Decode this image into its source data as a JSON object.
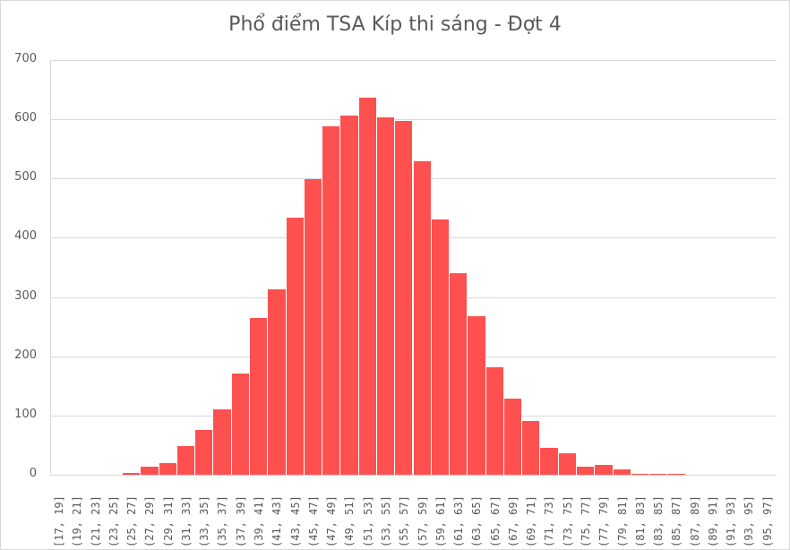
{
  "chart_data": {
    "type": "bar",
    "title": "Phổ điểm TSA Kíp thi sáng - Đợt 4",
    "xlabel": "",
    "ylabel": "",
    "ylim": [
      0,
      700
    ],
    "yticks": [
      0,
      100,
      200,
      300,
      400,
      500,
      600,
      700
    ],
    "grid": true,
    "legend": "none",
    "bar_color": "#ff5050",
    "categories": [
      "[17, 19]",
      "(19, 21]",
      "(21, 23]",
      "(23, 25]",
      "(25, 27]",
      "(27, 29]",
      "(29, 31]",
      "(31, 33]",
      "(33, 35]",
      "(35, 37]",
      "(37, 39]",
      "(39, 41]",
      "(41, 43]",
      "(43, 45]",
      "(45, 47]",
      "(47, 49]",
      "(49, 51]",
      "(51, 53]",
      "(53, 55]",
      "(55, 57]",
      "(57, 59]",
      "(59, 61]",
      "(61, 63]",
      "(63, 65]",
      "(65, 67]",
      "(67, 69]",
      "(69, 71]",
      "(71, 73]",
      "(73, 75]",
      "(75, 77]",
      "(77, 79]",
      "(79, 81]",
      "(81, 83]",
      "(83, 85]",
      "(85, 87]",
      "(87, 89]",
      "(89, 91]",
      "(91, 93]",
      "(93, 95]",
      "(95, 97]"
    ],
    "values": [
      0,
      0,
      0,
      0,
      3,
      13,
      20,
      48,
      76,
      110,
      171,
      265,
      313,
      434,
      499,
      588,
      606,
      636,
      603,
      597,
      529,
      431,
      340,
      268,
      181,
      129,
      91,
      46,
      37,
      13,
      17,
      9,
      2,
      2,
      2,
      0,
      0,
      0,
      0,
      0
    ]
  }
}
